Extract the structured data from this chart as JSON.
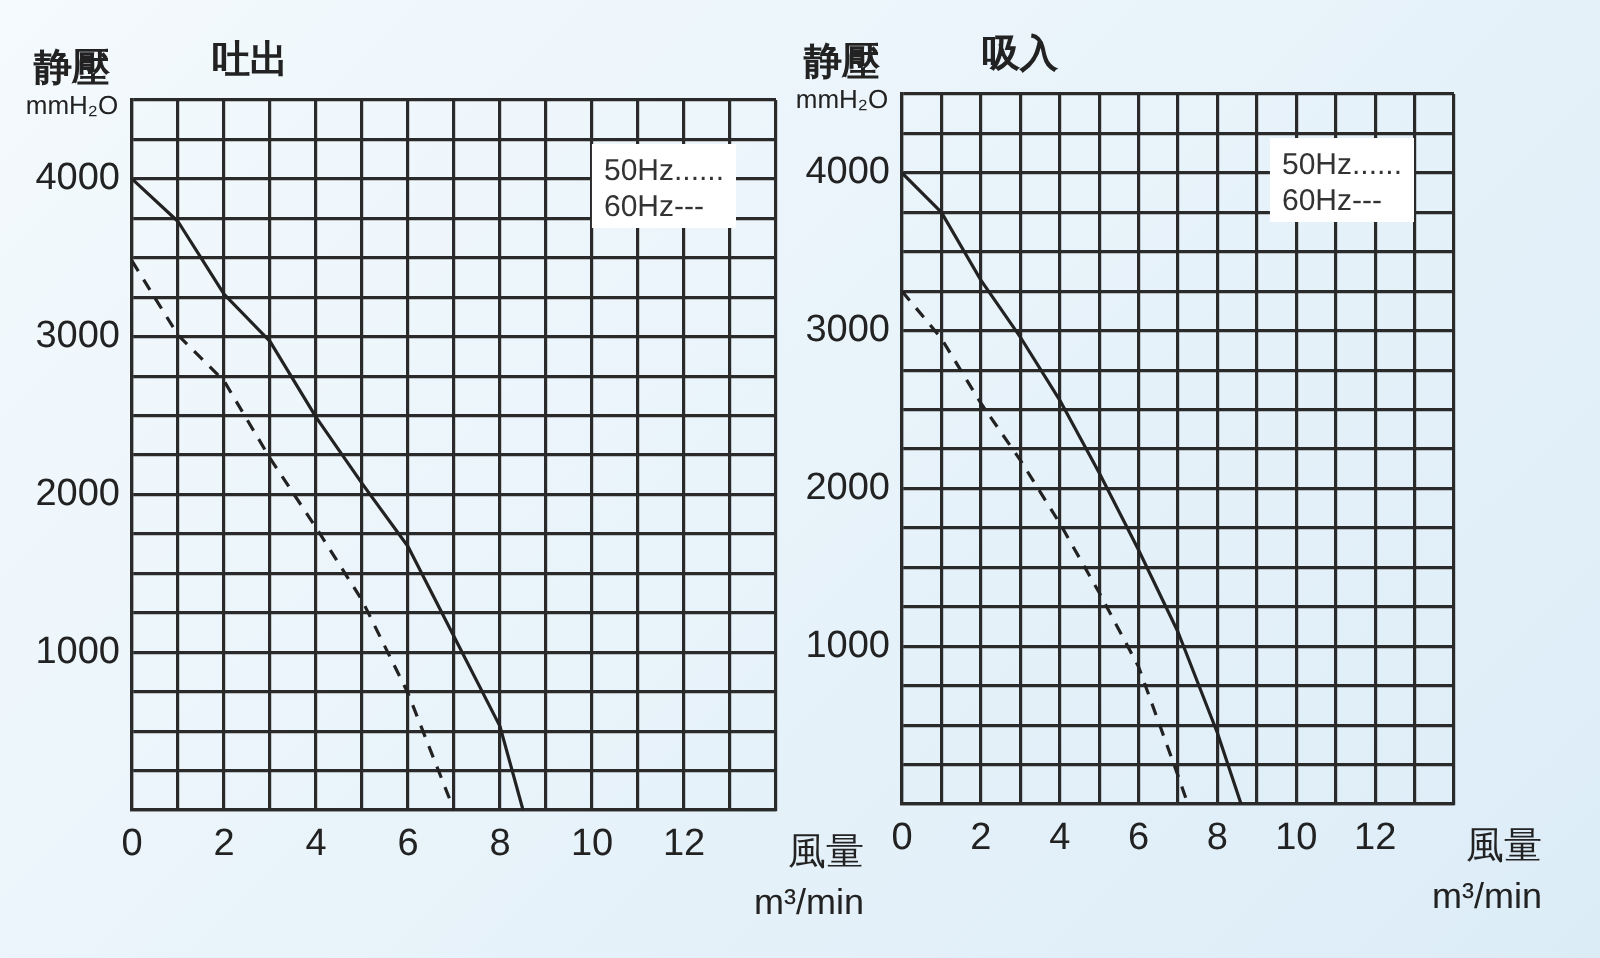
{
  "chart_data": [
    {
      "type": "line",
      "title": "吐出",
      "ylabel": "静壓 mmH₂O",
      "xlabel": "風量 m³/min",
      "xlim": [
        0,
        14
      ],
      "xticks": [
        0,
        {
          "value": 1,
          "label": null
        },
        2,
        {
          "value": 3,
          "label": null
        },
        4,
        {
          "value": 5,
          "label": null
        },
        6,
        {
          "value": 7,
          "label": null
        },
        8,
        {
          "value": 9,
          "label": null
        },
        10,
        {
          "value": 11,
          "label": null
        },
        12,
        {
          "value": 13,
          "label": null
        },
        {
          "value": 14,
          "label": null
        }
      ],
      "ylim": [
        0,
        4500
      ],
      "yticks": [
        {
          "value": 0,
          "label": null
        },
        {
          "value": 250,
          "label": null
        },
        {
          "value": 500,
          "label": null
        },
        {
          "value": 750,
          "label": null
        },
        1000,
        {
          "value": 1250,
          "label": null
        },
        {
          "value": 1500,
          "label": null
        },
        {
          "value": 1750,
          "label": null
        },
        2000,
        {
          "value": 2250,
          "label": null
        },
        {
          "value": 2500,
          "label": null
        },
        {
          "value": 2750,
          "label": null
        },
        3000,
        {
          "value": 3250,
          "label": null
        },
        {
          "value": 3500,
          "label": null
        },
        {
          "value": 3750,
          "label": null
        },
        4000,
        {
          "value": 4250,
          "label": null
        },
        {
          "value": 4500,
          "label": null
        }
      ],
      "grid": true,
      "legend": false,
      "marker": "none",
      "annotations": [
        "50Hz......",
        "60Hz---"
      ],
      "series": [
        {
          "color": "#222222",
          "line_style": "solid",
          "x": [
            0,
            1,
            2,
            3,
            4,
            5,
            6,
            7,
            8,
            8.5
          ],
          "values": [
            4000,
            3730,
            3270,
            2970,
            2490,
            2070,
            1670,
            1100,
            530,
            0
          ]
        },
        {
          "color": "#222222",
          "line_style": "dashed",
          "x": [
            0,
            1,
            2,
            3,
            4,
            5,
            6,
            7
          ],
          "values": [
            3480,
            3010,
            2720,
            2230,
            1790,
            1330,
            740,
            0
          ]
        }
      ]
    },
    {
      "type": "line",
      "title": "吸入",
      "ylabel": "静壓 mmH₂O",
      "xlabel": "風量 m³/min",
      "xlim": [
        0,
        14
      ],
      "xticks": [
        0,
        {
          "value": 1,
          "label": null
        },
        2,
        {
          "value": 3,
          "label": null
        },
        4,
        {
          "value": 5,
          "label": null
        },
        6,
        {
          "value": 7,
          "label": null
        },
        8,
        {
          "value": 9,
          "label": null
        },
        10,
        {
          "value": 11,
          "label": null
        },
        12,
        {
          "value": 13,
          "label": null
        },
        {
          "value": 14,
          "label": null
        }
      ],
      "ylim": [
        0,
        4500
      ],
      "yticks": [
        {
          "value": 0,
          "label": null
        },
        {
          "value": 250,
          "label": null
        },
        {
          "value": 500,
          "label": null
        },
        {
          "value": 750,
          "label": null
        },
        1000,
        {
          "value": 1250,
          "label": null
        },
        {
          "value": 1500,
          "label": null
        },
        {
          "value": 1750,
          "label": null
        },
        2000,
        {
          "value": 2250,
          "label": null
        },
        {
          "value": 2500,
          "label": null
        },
        {
          "value": 2750,
          "label": null
        },
        3000,
        {
          "value": 3250,
          "label": null
        },
        {
          "value": 3500,
          "label": null
        },
        {
          "value": 3750,
          "label": null
        },
        4000,
        {
          "value": 4250,
          "label": null
        },
        {
          "value": 4500,
          "label": null
        }
      ],
      "grid": true,
      "legend": false,
      "marker": "none",
      "annotations": [
        "50Hz......",
        "60Hz---"
      ],
      "series": [
        {
          "color": "#222222",
          "line_style": "solid",
          "x": [
            0,
            1,
            2,
            3,
            4,
            5,
            6,
            7,
            8,
            8.6
          ],
          "values": [
            4000,
            3750,
            3320,
            2960,
            2560,
            2100,
            1610,
            1090,
            450,
            0
          ]
        },
        {
          "color": "#222222",
          "line_style": "dashed",
          "x": [
            0,
            1,
            2,
            3,
            4,
            5,
            6,
            7,
            7.25
          ],
          "values": [
            3250,
            2950,
            2540,
            2180,
            1780,
            1340,
            870,
            180,
            0
          ]
        }
      ]
    }
  ]
}
